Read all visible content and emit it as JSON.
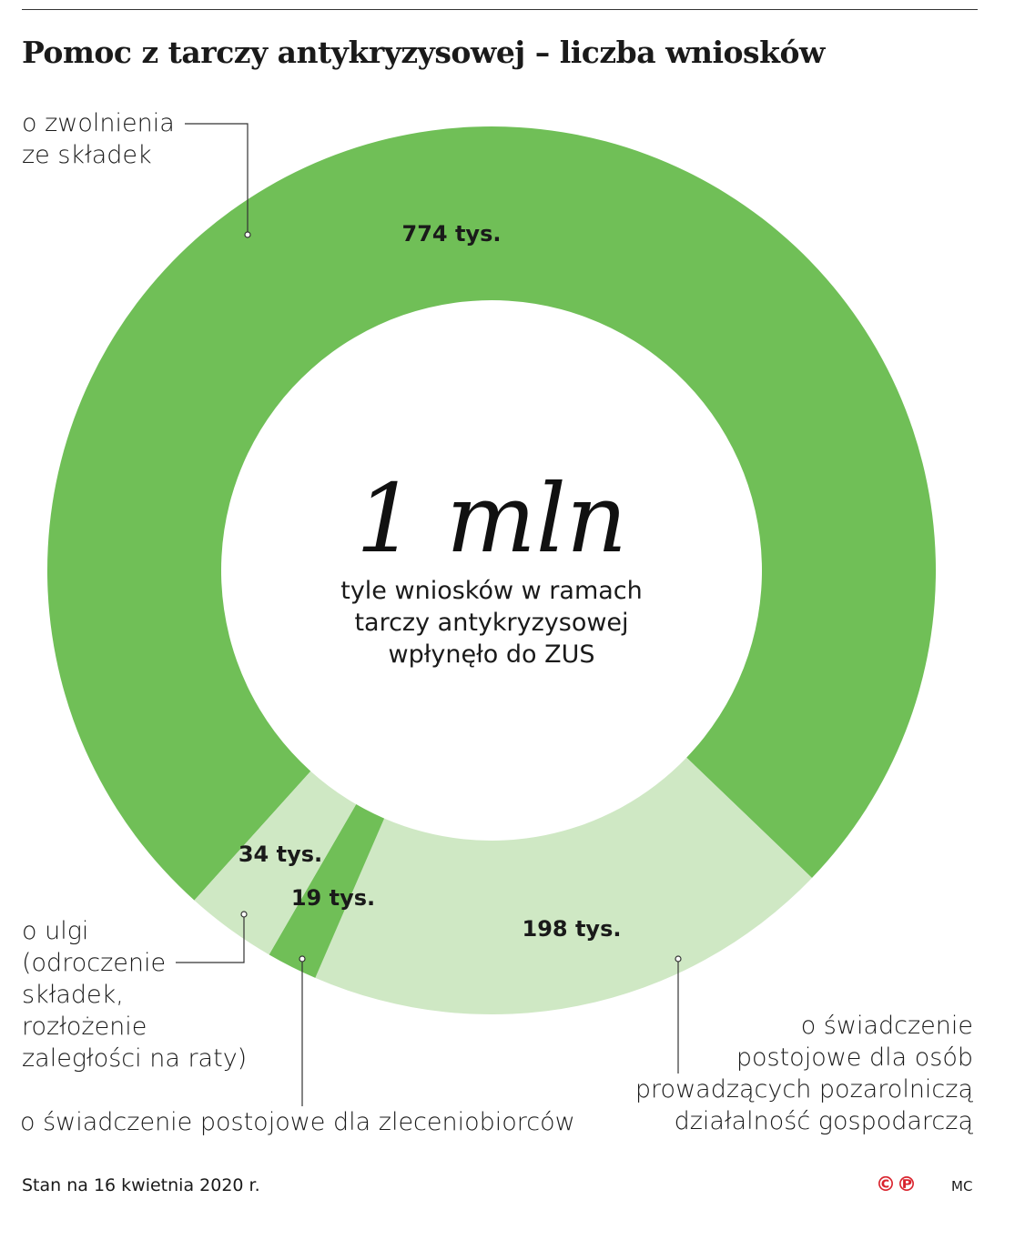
{
  "title": "Pomoc z tarczy antykryzysowej – liczba wniosków",
  "center": {
    "big": "1 mln",
    "sub_lines": [
      "tyle wniosków w ramach",
      "tarczy antykryzysowej",
      "wpłynęło do ZUS"
    ]
  },
  "chart_data": {
    "type": "pie",
    "donut": true,
    "unit": "tys.",
    "total_label": "1 mln",
    "slices": [
      {
        "label": "o zwolnienia ze składek",
        "value": 774,
        "value_label": "774 tys.",
        "color": "#70bf57"
      },
      {
        "label": "o świadczenie postojowe dla osób prowadzących pozarolniczą działalność gospodarczą",
        "value": 198,
        "value_label": "198 tys.",
        "color": "#cfe8c4"
      },
      {
        "label": "o świadczenie postojowe dla zleceniobiorców",
        "value": 19,
        "value_label": "19 tys.",
        "color": "#70bf57"
      },
      {
        "label": "o ulgi (odroczenie składek, rozłożenie zaległości na raty)",
        "value": 34,
        "value_label": "34 tys.",
        "color": "#cfe8c4"
      }
    ]
  },
  "labels": {
    "zwolnienia": [
      "o zwolnienia",
      "ze składek"
    ],
    "ulgi": [
      "o ulgi",
      "(odroczenie",
      "składek,",
      "rozłożenie",
      "zaległości na raty)"
    ],
    "zleceniobiorcy": [
      "o świadczenie postojowe dla zleceniobiorców"
    ],
    "postojowe": [
      "o świadczenie",
      "postojowe dla osób",
      "prowadzących pozarolniczą",
      "działalność gospodarczą"
    ]
  },
  "footer": "Stan na 16 kwietnia 2020 r.",
  "logo": "©℗",
  "author": "MC"
}
